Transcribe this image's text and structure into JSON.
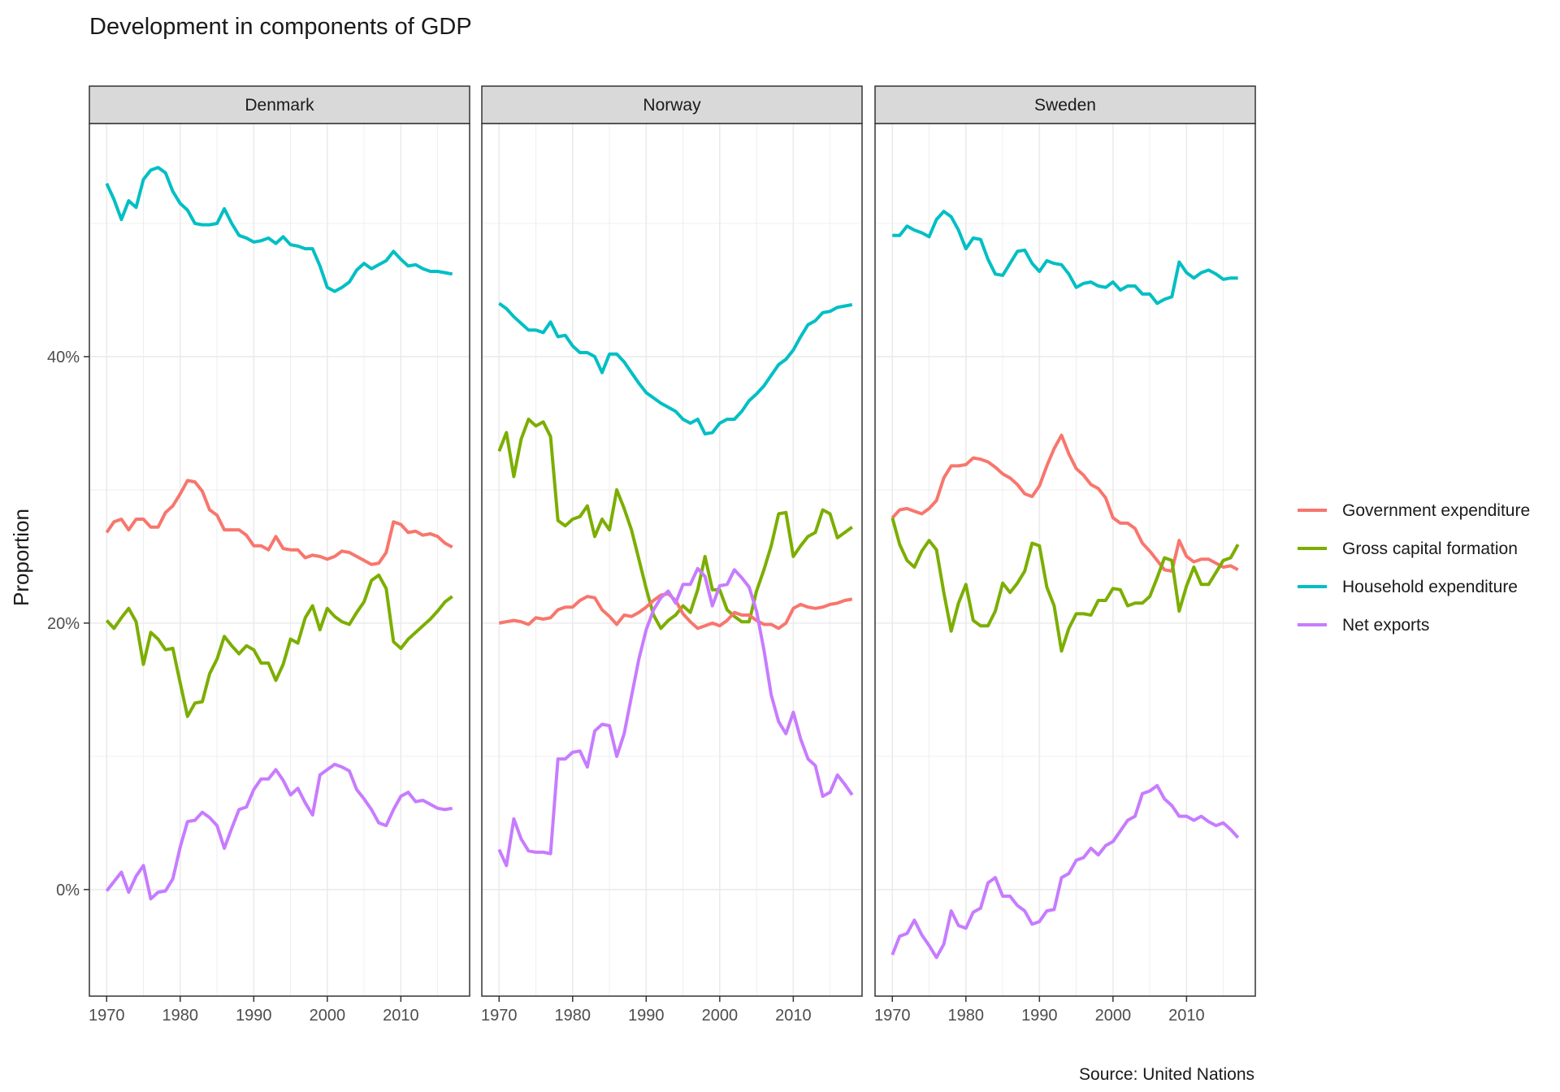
{
  "colors": {
    "government": "#F8766D",
    "capital": "#7CAE00",
    "household": "#00BFC4",
    "exports": "#C77CFF",
    "strip_bg": "#D9D9D9",
    "grid": "#EBEBEB",
    "panel_border": "#333333"
  },
  "chart_data": {
    "type": "line",
    "title": "Development in components of GDP",
    "ylabel": "Proportion",
    "xlabel": "",
    "caption": "Source: United Nations",
    "x_ticks": [
      1970,
      1980,
      1990,
      2000,
      2010
    ],
    "x_tick_labels": [
      "1970",
      "1980",
      "1990",
      "2000",
      "2010"
    ],
    "y_ticks": [
      0,
      20,
      40
    ],
    "y_tick_labels": [
      "0%",
      "20%",
      "40%"
    ],
    "xlim": [
      1967.65,
      2019.35
    ],
    "ylim": [
      -8,
      57.5
    ],
    "legend_position": "right",
    "legend": [
      {
        "key": "government",
        "label": "Government expenditure"
      },
      {
        "key": "capital",
        "label": "Gross capital formation"
      },
      {
        "key": "household",
        "label": "Household expenditure"
      },
      {
        "key": "exports",
        "label": "Net exports"
      }
    ],
    "x_start": 1970,
    "panels": [
      {
        "name": "Denmark",
        "series": [
          {
            "key": "household",
            "values": [
              53.0,
              51.8,
              50.3,
              51.7,
              51.2,
              53.3,
              54.0,
              54.2,
              53.8,
              52.4,
              51.5,
              51.0,
              50.0,
              49.9,
              49.9,
              50.0,
              51.1,
              50.0,
              49.1,
              48.9,
              48.6,
              48.7,
              48.9,
              48.5,
              49.0,
              48.4,
              48.3,
              48.1,
              48.1,
              46.8,
              45.2,
              44.9,
              45.2,
              45.6,
              46.5,
              47.0,
              46.6,
              46.9,
              47.2,
              47.9,
              47.3,
              46.8,
              46.9,
              46.6,
              46.4,
              46.4,
              46.3,
              46.2
            ]
          },
          {
            "key": "government",
            "values": [
              26.8,
              27.6,
              27.8,
              27.0,
              27.8,
              27.8,
              27.2,
              27.2,
              28.3,
              28.8,
              29.7,
              30.7,
              30.6,
              29.9,
              28.5,
              28.1,
              27.0,
              27.0,
              27.0,
              26.6,
              25.8,
              25.8,
              25.5,
              26.5,
              25.6,
              25.5,
              25.5,
              24.9,
              25.1,
              25.0,
              24.8,
              25.0,
              25.4,
              25.3,
              25.0,
              24.7,
              24.4,
              24.5,
              25.3,
              27.6,
              27.4,
              26.8,
              26.9,
              26.6,
              26.7,
              26.5,
              26.0,
              25.7
            ]
          },
          {
            "key": "capital",
            "values": [
              20.2,
              19.6,
              20.4,
              21.1,
              20.1,
              16.9,
              19.3,
              18.8,
              18.0,
              18.1,
              15.5,
              13.0,
              14.0,
              14.1,
              16.2,
              17.3,
              19.0,
              18.3,
              17.7,
              18.3,
              18.0,
              17.0,
              17.0,
              15.7,
              16.9,
              18.8,
              18.5,
              20.4,
              21.3,
              19.5,
              21.1,
              20.5,
              20.1,
              19.9,
              20.8,
              21.6,
              23.2,
              23.6,
              22.6,
              18.6,
              18.1,
              18.8,
              19.3,
              19.8,
              20.3,
              20.9,
              21.6,
              22.0
            ]
          },
          {
            "key": "exports",
            "values": [
              -0.1,
              0.6,
              1.3,
              -0.2,
              1.0,
              1.8,
              -0.7,
              -0.2,
              -0.1,
              0.8,
              3.2,
              5.1,
              5.2,
              5.8,
              5.4,
              4.8,
              3.1,
              4.6,
              6.0,
              6.2,
              7.5,
              8.3,
              8.3,
              9.0,
              8.2,
              7.1,
              7.6,
              6.5,
              5.6,
              8.6,
              9.0,
              9.4,
              9.2,
              8.9,
              7.5,
              6.8,
              6.0,
              5.0,
              4.8,
              6.0,
              7.0,
              7.3,
              6.6,
              6.7,
              6.4,
              6.1,
              6.0,
              6.1
            ]
          }
        ]
      },
      {
        "name": "Norway",
        "series": [
          {
            "key": "household",
            "values": [
              44.0,
              43.6,
              43.0,
              42.5,
              42.0,
              42.0,
              41.8,
              42.6,
              41.5,
              41.6,
              40.8,
              40.3,
              40.3,
              40.0,
              38.8,
              40.2,
              40.2,
              39.6,
              38.8,
              38.0,
              37.3,
              36.9,
              36.5,
              36.2,
              35.9,
              35.3,
              35.0,
              35.3,
              34.2,
              34.3,
              35.0,
              35.3,
              35.3,
              35.9,
              36.7,
              37.2,
              37.8,
              38.6,
              39.4,
              39.8,
              40.5,
              41.5,
              42.4,
              42.7,
              43.3,
              43.4,
              43.7,
              43.8,
              43.9
            ]
          },
          {
            "key": "capital",
            "values": [
              32.9,
              34.3,
              31.0,
              33.8,
              35.3,
              34.8,
              35.1,
              34.0,
              27.7,
              27.3,
              27.8,
              28.0,
              28.8,
              26.5,
              27.8,
              27.0,
              30.0,
              28.6,
              27.0,
              24.8,
              22.6,
              20.6,
              19.6,
              20.2,
              20.6,
              21.3,
              20.8,
              22.5,
              25.0,
              22.5,
              22.5,
              21.0,
              20.5,
              20.1,
              20.1,
              22.4,
              24.0,
              25.8,
              28.2,
              28.3,
              25.0,
              25.8,
              26.5,
              26.8,
              28.5,
              28.2,
              26.4,
              26.8,
              27.2
            ]
          },
          {
            "key": "government",
            "values": [
              20.0,
              20.1,
              20.2,
              20.1,
              19.9,
              20.4,
              20.3,
              20.4,
              21.0,
              21.2,
              21.2,
              21.7,
              22.0,
              21.9,
              21.0,
              20.5,
              19.9,
              20.6,
              20.5,
              20.8,
              21.2,
              21.7,
              22.1,
              22.2,
              21.7,
              20.7,
              20.1,
              19.6,
              19.8,
              20.0,
              19.8,
              20.2,
              20.8,
              20.6,
              20.6,
              20.2,
              19.9,
              19.9,
              19.6,
              20.0,
              21.1,
              21.4,
              21.2,
              21.1,
              21.2,
              21.4,
              21.5,
              21.7,
              21.8
            ]
          },
          {
            "key": "exports",
            "values": [
              3.0,
              1.8,
              5.3,
              3.8,
              2.9,
              2.8,
              2.8,
              2.7,
              9.8,
              9.8,
              10.3,
              10.4,
              9.2,
              11.9,
              12.4,
              12.3,
              10.0,
              11.7,
              14.5,
              17.3,
              19.5,
              21.0,
              21.9,
              22.4,
              21.5,
              22.9,
              22.9,
              24.1,
              23.5,
              21.3,
              22.8,
              22.9,
              24.0,
              23.4,
              22.7,
              20.9,
              18.0,
              14.6,
              12.6,
              11.7,
              13.3,
              11.3,
              9.8,
              9.3,
              7.0,
              7.3,
              8.6,
              7.9,
              7.1
            ]
          }
        ]
      },
      {
        "name": "Sweden",
        "series": [
          {
            "key": "household",
            "values": [
              49.1,
              49.1,
              49.8,
              49.5,
              49.3,
              49.0,
              50.3,
              50.9,
              50.5,
              49.5,
              48.1,
              48.9,
              48.8,
              47.3,
              46.2,
              46.1,
              47.0,
              47.9,
              48.0,
              47.0,
              46.4,
              47.2,
              47.0,
              46.9,
              46.2,
              45.2,
              45.5,
              45.6,
              45.3,
              45.2,
              45.6,
              45.0,
              45.3,
              45.3,
              44.7,
              44.7,
              44.0,
              44.3,
              44.5,
              47.1,
              46.3,
              45.9,
              46.3,
              46.5,
              46.2,
              45.8,
              45.9,
              45.9
            ]
          },
          {
            "key": "government",
            "values": [
              27.9,
              28.5,
              28.6,
              28.4,
              28.2,
              28.6,
              29.2,
              30.9,
              31.8,
              31.8,
              31.9,
              32.4,
              32.3,
              32.1,
              31.7,
              31.2,
              30.9,
              30.4,
              29.7,
              29.5,
              30.3,
              31.8,
              33.1,
              34.1,
              32.7,
              31.6,
              31.1,
              30.4,
              30.1,
              29.4,
              27.9,
              27.5,
              27.5,
              27.1,
              26.0,
              25.4,
              24.7,
              24.0,
              23.9,
              26.2,
              25.0,
              24.6,
              24.8,
              24.8,
              24.5,
              24.2,
              24.3,
              24.0
            ]
          },
          {
            "key": "capital",
            "values": [
              27.9,
              25.9,
              24.7,
              24.2,
              25.4,
              26.2,
              25.5,
              22.3,
              19.4,
              21.5,
              22.9,
              20.2,
              19.8,
              19.8,
              20.9,
              23.0,
              22.3,
              23.0,
              23.9,
              26.0,
              25.8,
              22.7,
              21.3,
              17.9,
              19.6,
              20.7,
              20.7,
              20.6,
              21.7,
              21.7,
              22.6,
              22.5,
              21.3,
              21.5,
              21.5,
              22.0,
              23.4,
              24.9,
              24.7,
              20.9,
              22.8,
              24.2,
              22.9,
              22.9,
              23.8,
              24.7,
              24.9,
              25.9
            ]
          },
          {
            "key": "exports",
            "values": [
              -4.9,
              -3.5,
              -3.3,
              -2.3,
              -3.4,
              -4.2,
              -5.1,
              -4.1,
              -1.6,
              -2.7,
              -2.9,
              -1.7,
              -1.4,
              0.5,
              0.9,
              -0.5,
              -0.5,
              -1.2,
              -1.6,
              -2.6,
              -2.4,
              -1.6,
              -1.5,
              0.9,
              1.2,
              2.2,
              2.4,
              3.1,
              2.6,
              3.3,
              3.6,
              4.4,
              5.2,
              5.5,
              7.2,
              7.4,
              7.8,
              6.8,
              6.3,
              5.5,
              5.5,
              5.2,
              5.5,
              5.1,
              4.8,
              5.0,
              4.5,
              3.9
            ]
          }
        ]
      }
    ]
  }
}
